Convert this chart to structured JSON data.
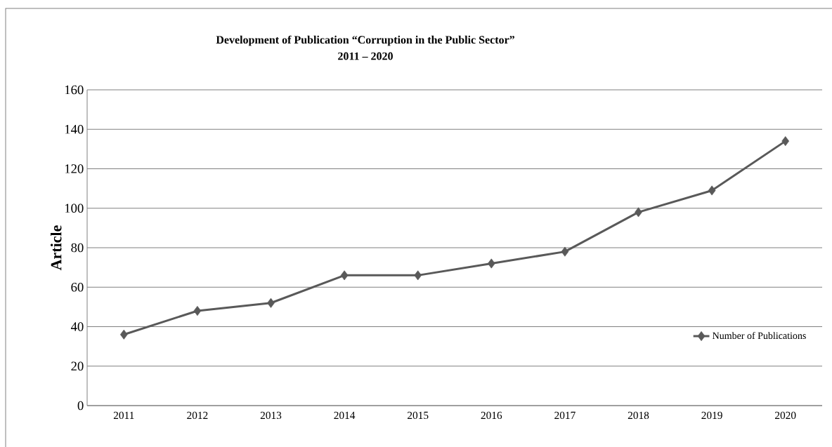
{
  "chart_data": {
    "type": "line",
    "title": "Development of Publication “Corruption in the Public Sector”",
    "subtitle": "2011 – 2020",
    "ylabel": "Article",
    "categories": [
      "2011",
      "2012",
      "2013",
      "2014",
      "2015",
      "2016",
      "2017",
      "2018",
      "2019",
      "2020"
    ],
    "series": [
      {
        "name": "Number of Publications",
        "color": "#595959",
        "values": [
          36,
          48,
          52,
          66,
          66,
          72,
          78,
          98,
          109,
          134
        ]
      }
    ],
    "ylim": [
      0,
      160
    ],
    "yticks": [
      0,
      20,
      40,
      60,
      80,
      100,
      120,
      140,
      160
    ],
    "grid": "y",
    "legend": "bottom right",
    "marker": "diamond",
    "line_style": "solid"
  }
}
